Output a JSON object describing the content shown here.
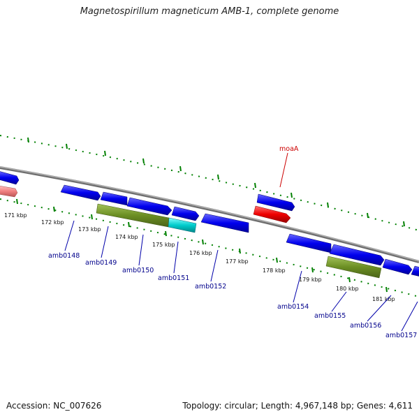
{
  "title": "Magnetospirillum magneticum AMB-1, complete genome",
  "footer": {
    "accession": "Accession: NC_007626",
    "summary": "Topology: circular; Length: 4,967,148 bp; Genes: 4,611"
  },
  "scale_labels": [
    "171 kbp",
    "172 kbp",
    "173 kbp",
    "174 kbp",
    "175 kbp",
    "176 kbp",
    "177 kbp",
    "178 kbp",
    "179 kbp",
    "180 kbp",
    "181 kbp"
  ],
  "gene_labels": [
    "amb0148",
    "amb0149",
    "amb0150",
    "amb0151",
    "amb0152",
    "amb0154",
    "amb0155",
    "amb0156",
    "amb0157"
  ],
  "feature_labels": [
    "moaA"
  ],
  "colors": {
    "backbone": "#888888",
    "tick": "#008000",
    "gene_blue": "#0000ee",
    "gene_olive": "#6b8e23",
    "gene_cyan": "#00cccc",
    "gene_red": "#ee0000",
    "gene_pink": "#f08080",
    "label_blue": "#00008b",
    "label_red": "#cc0000"
  }
}
